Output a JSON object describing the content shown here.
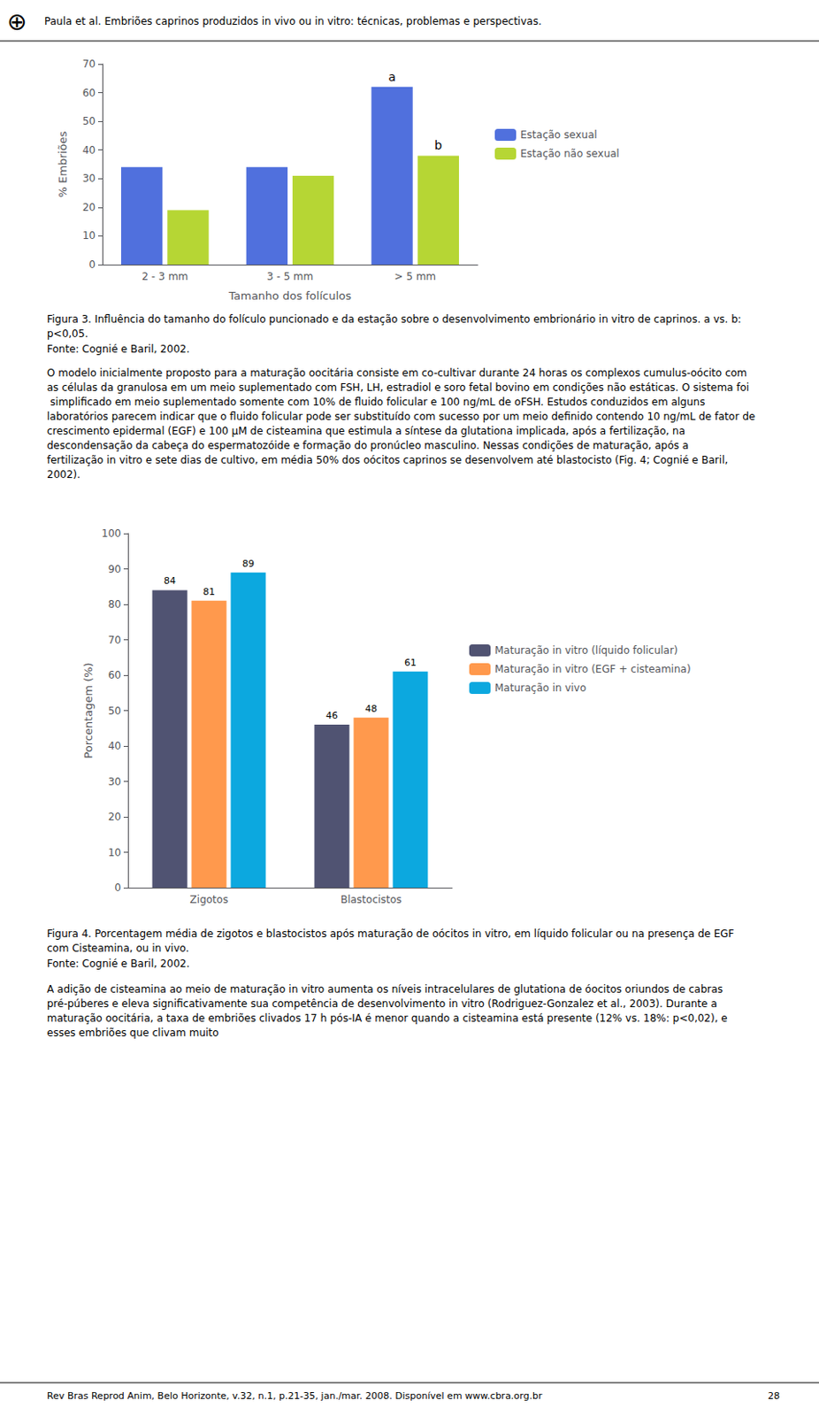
{
  "page_text": {
    "logo": "⊕",
    "header": "Paula et al. Embriões caprinos produzidos in vivo ou in vitro: técnicas, problemas e perspectivas.",
    "paragraphs": [
      "O modelo inicialmente proposto para a maturação oocitária consiste em co-cultivar durante 24 horas os complexos cumulus-oócito com as células da granulosa em um meio suplementado com FSH, LH, estradiol e soro fetal bovino em condições não estáticas. O sistema foi simplificado em meio suplementado somente com 10% de fluido folicular e 100 ng/mL de oFSH. Estudos conduzidos em alguns laboratórios parecem indicar que o fluido folicular pode ser substituído com sucesso por um meio definido contendo 10 ng/mL de fator de crescimento epidermal (EGF) e 100 µM de cisteamina que estimula a síntese da glutationa implicada, após a fertilização, na descondensação da cabeça do espermatozóide e formação do pronúcleo masculino. Nessas condições de maturação, após a fertilização in vitro e sete dias de cultivo, em média 50% dos oócitos caprinos se desenvolvem até blastocisto (Fig. 4; Cognié e Baril, 2002).",
      "A adição de cisteamina ao meio de maturação in vitro aumenta os níveis intracelulares de glutationa de óocitos oriundos de cabras pré-púberes e eleva significativamente sua competência de desenvolvimento in vitro (Rodriguez-Gonzalez et al., 2003). Durante a maturação oocitária, a taxa de embriões clivados 17 h pós-IA é menor quando a cisteamina está presente (12% vs. 18%: p<0,02), e esses embriões que clivam muito"
    ],
    "footer": "Rev Bras Reprod Anim, Belo Horizonte, v.32, n.1, p.21-35, jan./mar. 2008. Disponível em www.cbra.org.br",
    "page_number": "28"
  },
  "chart_data": [
    {
      "type": "bar",
      "title": "Figura 3. Influência do tamanho do folículo puncionado e da estação sobre o desenvolvimento embrionário in vitro de caprinos. a vs. b: p<0,05.",
      "subtitle": "Fonte: Cognié e Baril, 2002.",
      "categories": [
        "2 - 3 mm",
        "3 - 5 mm",
        "> 5 mm"
      ],
      "series": [
        {
          "name": "Estação sexual",
          "values": [
            34,
            34,
            62
          ]
        },
        {
          "name": "Estação não sexual",
          "values": [
            19,
            31,
            38
          ]
        }
      ],
      "xlabel": "Tamanho dos folículos",
      "ylabel": "% Embriões",
      "ylim": [
        0,
        70
      ],
      "yticks": [
        0,
        10,
        20,
        30,
        40,
        50,
        60,
        70
      ],
      "grid": false,
      "legend": "right",
      "annotations": [
        {
          "text": "a",
          "category": "> 5 mm",
          "series": "Estação sexual"
        },
        {
          "text": "b",
          "category": "> 5 mm",
          "series": "Estação não sexual"
        }
      ]
    },
    {
      "type": "bar",
      "title": "Figura 4. Porcentagem média de zigotos e blastocistos após maturação de oócitos in vitro, em líquido folicular ou na presença de EGF com Cisteamina, ou in vivo.",
      "subtitle": "Fonte: Cognié e Baril, 2002.",
      "categories": [
        "Zigotos",
        "Blastocistos"
      ],
      "series": [
        {
          "name": "Maturação in vitro (líquido folicular)",
          "values": [
            84,
            46
          ]
        },
        {
          "name": "Maturação in vitro (EGF + cisteamina)",
          "values": [
            81,
            48
          ]
        },
        {
          "name": "Maturação in vivo",
          "values": [
            89,
            61
          ]
        }
      ],
      "ylabel": "Porcentagem (%)",
      "ylim": [
        0,
        100
      ],
      "yticks": [
        0,
        10,
        20,
        30,
        40,
        50,
        60,
        70,
        80,
        90,
        100
      ],
      "grid": false,
      "legend": "right",
      "data_labels": true
    }
  ]
}
